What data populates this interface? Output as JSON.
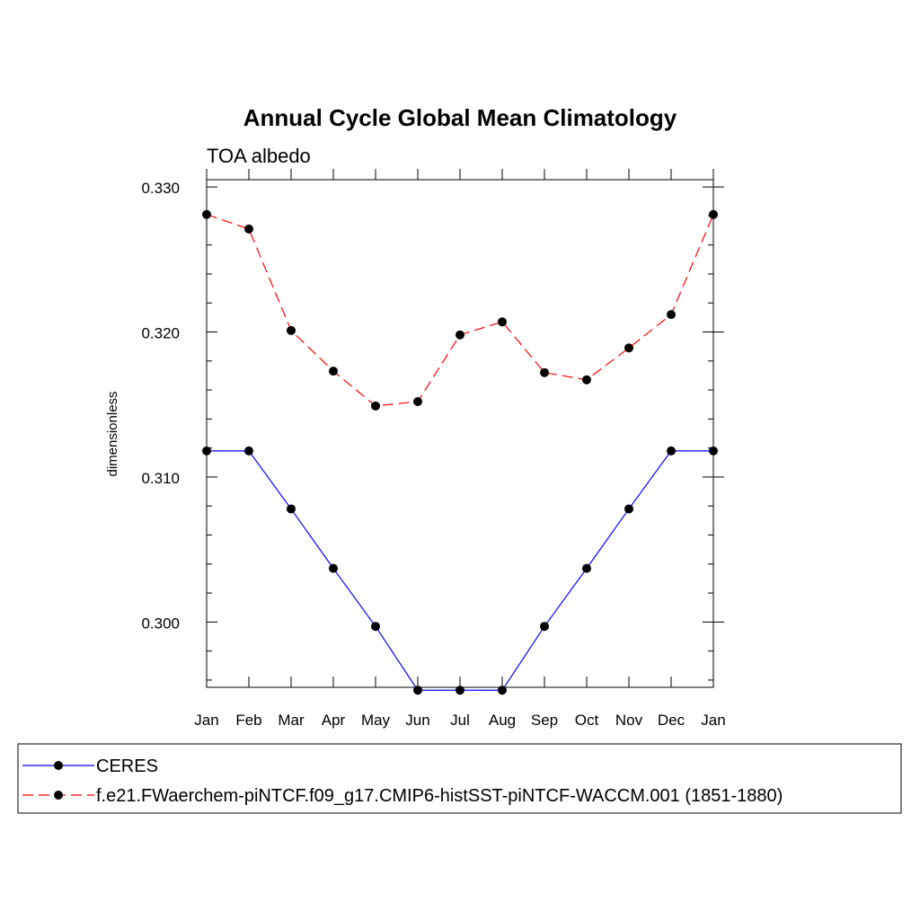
{
  "chart_data": {
    "type": "line",
    "title": "Annual Cycle Global Mean Climatology",
    "subtitle": "TOA albedo",
    "xlabel": "",
    "ylabel": "dimensionless",
    "categories": [
      "Jan",
      "Feb",
      "Mar",
      "Apr",
      "May",
      "Jun",
      "Jul",
      "Aug",
      "Sep",
      "Oct",
      "Nov",
      "Dec",
      "Jan"
    ],
    "yticks": [
      "0.300",
      "0.310",
      "0.320",
      "0.330"
    ],
    "ylim": [
      0.2955,
      0.3305
    ],
    "series": [
      {
        "name": "CERES",
        "color": "#0000ff",
        "dash": "solid",
        "values": [
          0.3118,
          0.3118,
          0.3078,
          0.3037,
          0.2997,
          0.2953,
          0.2953,
          0.2953,
          0.2997,
          0.3037,
          0.3078,
          0.3118,
          0.3118
        ]
      },
      {
        "name": "f.e21.FWaerchem-piNTCF.f09_g17.CMIP6-histSST-piNTCF-WACCM.001 (1851-1880)",
        "color": "#ff0000",
        "dash": "dashed",
        "values": [
          0.3281,
          0.3271,
          0.3201,
          0.3173,
          0.3149,
          0.3152,
          0.3198,
          0.3207,
          0.3172,
          0.3167,
          0.3189,
          0.3212,
          0.3281
        ]
      }
    ],
    "marker": "filled-circle",
    "legend_position": "bottom"
  }
}
